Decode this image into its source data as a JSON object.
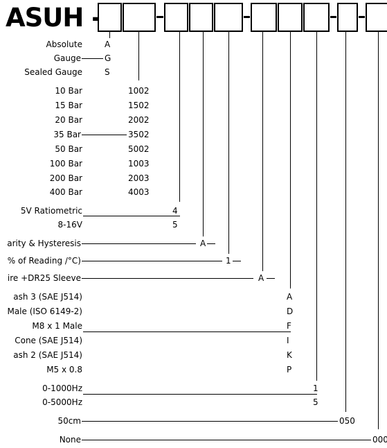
{
  "title": "ASUH -",
  "pressure_type": {
    "absolute": {
      "label": "Absolute",
      "code": "A"
    },
    "gauge": {
      "label": "Gauge",
      "code": "G"
    },
    "sealed_gauge": {
      "label": "Sealed Gauge",
      "code": "S"
    }
  },
  "pressure_range": [
    {
      "label": "10 Bar",
      "code": "1002"
    },
    {
      "label": "15 Bar",
      "code": "1502"
    },
    {
      "label": "20 Bar",
      "code": "2002"
    },
    {
      "label": "35 Bar",
      "code": "3502"
    },
    {
      "label": "50 Bar",
      "code": "5002"
    },
    {
      "label": "100 Bar",
      "code": "1003"
    },
    {
      "label": "200 Bar",
      "code": "2003"
    },
    {
      "label": "400 Bar",
      "code": "4003"
    }
  ],
  "output": {
    "ratiometric": {
      "label": "5V Ratiometric",
      "code": "4"
    },
    "v816": {
      "label": "8-16V",
      "code": "5"
    }
  },
  "accuracy": {
    "label": "arity & Hysteresis",
    "code": "A"
  },
  "thermal": {
    "label": "% of Reading /°C)",
    "code": "1"
  },
  "cable": {
    "label": "ire +DR25 Sleeve",
    "code": "A"
  },
  "fitting": [
    {
      "label": "ash 3 (SAE J514)",
      "code": "A"
    },
    {
      "label": "Male (ISO 6149-2)",
      "code": "D"
    },
    {
      "label": "M8 x 1 Male",
      "code": "F"
    },
    {
      "label": "Cone (SAE J514)",
      "code": "I"
    },
    {
      "label": "ash 2 (SAE J514)",
      "code": "K"
    },
    {
      "label": "M5 x 0.8",
      "code": "P"
    }
  ],
  "frequency": {
    "f1000": {
      "label": "0-1000Hz",
      "code": "1"
    },
    "f5000": {
      "label": "0-5000Hz",
      "code": "5"
    }
  },
  "length": {
    "label": "50cm",
    "code": "050"
  },
  "option": {
    "label": "None",
    "code": "000"
  }
}
